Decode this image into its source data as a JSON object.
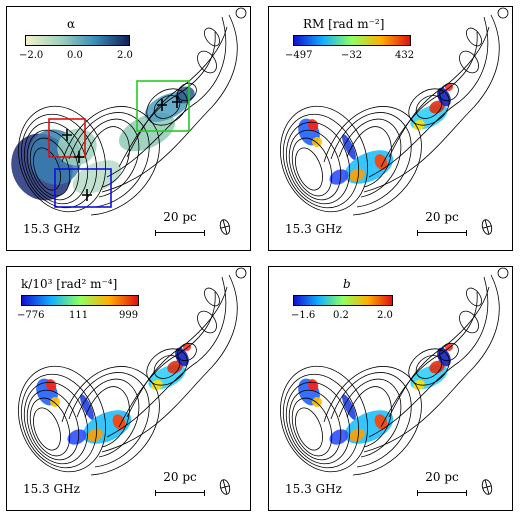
{
  "panels": [
    {
      "id": "alpha",
      "colorbar": {
        "title": "α",
        "ticks": [
          "−2.0",
          "0.0",
          "2.0"
        ],
        "colors": [
          "#f4f1c8",
          "#9fd2bd",
          "#3a8fb8",
          "#10205a"
        ]
      },
      "freq_label": "15.3 GHz",
      "scale_label": "20 pc",
      "boxes": [
        {
          "name": "red-region-box",
          "color": "#e01010"
        },
        {
          "name": "green-region-box",
          "color": "#22cc22"
        },
        {
          "name": "blue-region-box",
          "color": "#1010dd"
        }
      ]
    },
    {
      "id": "rm",
      "colorbar": {
        "title": "RM [rad m⁻²]",
        "ticks": [
          "−497",
          "−32",
          "432"
        ],
        "colors": [
          "#1010d0",
          "#10b0ff",
          "#90ff60",
          "#ffb000",
          "#e01010"
        ]
      },
      "freq_label": "15.3 GHz",
      "scale_label": "20 pc"
    },
    {
      "id": "k",
      "colorbar": {
        "title": "k/10³ [rad² m⁻⁴]",
        "ticks": [
          "−776",
          "111",
          "999"
        ],
        "colors": [
          "#1010d0",
          "#10b0ff",
          "#90ff60",
          "#ffb000",
          "#e01010"
        ]
      },
      "freq_label": "15.3 GHz",
      "scale_label": "20 pc"
    },
    {
      "id": "b",
      "colorbar": {
        "title": "b",
        "ticks": [
          "−1.6",
          "0.2",
          "2.0"
        ],
        "colors": [
          "#1010d0",
          "#10b0ff",
          "#90ff60",
          "#ffb000",
          "#e01010"
        ]
      },
      "freq_label": "15.3 GHz",
      "scale_label": "20 pc"
    }
  ]
}
